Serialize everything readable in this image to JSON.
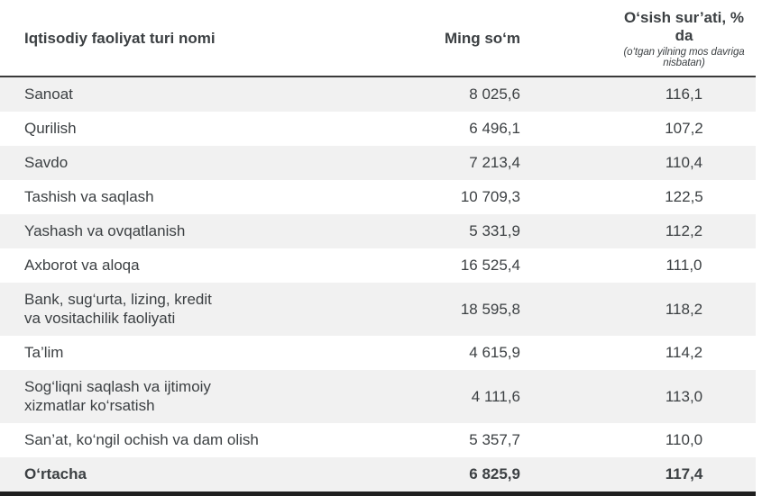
{
  "table": {
    "columns": {
      "name": "Iqtisodiy faoliyat turi nomi",
      "amount": "Ming so‘m",
      "growth": "O‘sish sur’ati, % da",
      "growth_note": "(o‘tgan yilning mos davriga nisbatan)"
    },
    "rows": [
      {
        "name": "Sanoat",
        "amount": "8 025,6",
        "growth": "116,1"
      },
      {
        "name": "Qurilish",
        "amount": "6 496,1",
        "growth": "107,2"
      },
      {
        "name": "Savdo",
        "amount": "7 213,4",
        "growth": "110,4"
      },
      {
        "name": "Tashish va saqlash",
        "amount": "10 709,3",
        "growth": "122,5"
      },
      {
        "name": "Yashash va ovqatlanish",
        "amount": "5 331,9",
        "growth": "112,2"
      },
      {
        "name": "Axborot va aloqa",
        "amount": "16 525,4",
        "growth": "111,0"
      },
      {
        "name": "Bank, sug‘urta, lizing, kredit\nva vositachilik faoliyati",
        "amount": "18 595,8",
        "growth": "118,2"
      },
      {
        "name": "Ta’lim",
        "amount": "4 615,9",
        "growth": "114,2"
      },
      {
        "name": "Sog‘liqni saqlash va ijtimoiy\nxizmatlar ko‘rsatish",
        "amount": "4 111,6",
        "growth": "113,0"
      },
      {
        "name": "San’at, ko‘ngil ochish va dam olish",
        "amount": "5 357,7",
        "growth": "110,0"
      },
      {
        "name": "O‘rtacha",
        "amount": "6 825,9",
        "growth": "117,4"
      }
    ]
  },
  "colors": {
    "text": "#3c4043",
    "stripe": "#f1f1f1",
    "header_rule": "#3a3a3a",
    "bottom_rule": "#1f1f1f",
    "background": "#ffffff"
  },
  "chart_data": {
    "type": "table",
    "title": "",
    "columns": [
      "Iqtisodiy faoliyat turi nomi",
      "Ming so‘m",
      "O‘sish sur’ati, % da (o‘tgan yilning mos davriga nisbatan)"
    ],
    "categories": [
      "Sanoat",
      "Qurilish",
      "Savdo",
      "Tashish va saqlash",
      "Yashash va ovqatlanish",
      "Axborot va aloqa",
      "Bank, sug‘urta, lizing, kredit va vositachilik faoliyati",
      "Ta’lim",
      "Sog‘liqni saqlash va ijtimoiy xizmatlar ko‘rsatish",
      "San’at, ko‘ngil ochish va dam olish",
      "O‘rtacha"
    ],
    "series": [
      {
        "name": "Ming so‘m",
        "values": [
          8025.6,
          6496.1,
          7213.4,
          10709.3,
          5331.9,
          16525.4,
          18595.8,
          4615.9,
          4111.6,
          5357.7,
          6825.9
        ]
      },
      {
        "name": "O‘sish sur’ati, % da",
        "values": [
          116.1,
          107.2,
          110.4,
          122.5,
          112.2,
          111.0,
          118.2,
          114.2,
          113.0,
          110.0,
          117.4
        ]
      }
    ]
  }
}
